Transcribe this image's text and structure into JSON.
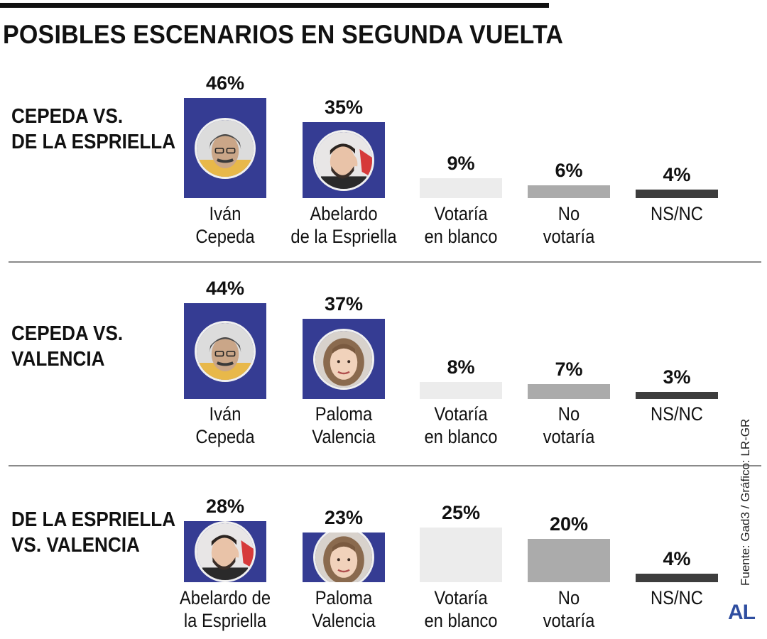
{
  "header": {
    "title": "POSIBLES ESCENARIOS EN SEGUNDA VUELTA"
  },
  "source_note": "Fuente: Gad3 / Gráfico: LR-GR",
  "logo_text": "AL",
  "colors": {
    "candidate": "#353c93",
    "blank": "#ececec",
    "no_vote": "#ababab",
    "ns_nc": "#3d3d3d"
  },
  "chart_data": [
    {
      "type": "bar",
      "title": "CEPEDA VS.\nDE LA ESPRIELLA",
      "categories": [
        "Iván\nCepeda",
        "Abelardo\nde la Espriella",
        "Votaría\nen blanco",
        "No\nvotaría",
        "NS/NC"
      ],
      "values": [
        46,
        35,
        9,
        6,
        4
      ],
      "value_labels": [
        "46%",
        "35%",
        "9%",
        "6%",
        "4%"
      ],
      "kinds": [
        "candidate",
        "candidate",
        "blank",
        "novote",
        "nsnc"
      ],
      "photos": [
        "man-glasses",
        "man-bearded",
        "",
        "",
        ""
      ]
    },
    {
      "type": "bar",
      "title": "CEPEDA VS.\nVALENCIA",
      "categories": [
        "Iván\nCepeda",
        "Paloma\nValencia",
        "Votaría\nen blanco",
        "No\nvotaría",
        "NS/NC"
      ],
      "values": [
        44,
        37,
        8,
        7,
        3
      ],
      "value_labels": [
        "44%",
        "37%",
        "8%",
        "7%",
        "3%"
      ],
      "kinds": [
        "candidate",
        "candidate",
        "blank",
        "novote",
        "nsnc"
      ],
      "photos": [
        "man-glasses",
        "woman",
        "",
        "",
        ""
      ]
    },
    {
      "type": "bar",
      "title": "DE LA ESPRIELLA\nVS. VALENCIA",
      "categories": [
        "Abelardo de\nla Espriella",
        "Paloma\nValencia",
        "Votaría\nen blanco",
        "No\nvotaría",
        "NS/NC"
      ],
      "values": [
        28,
        23,
        25,
        20,
        4
      ],
      "value_labels": [
        "28%",
        "23%",
        "25%",
        "20%",
        "4%"
      ],
      "kinds": [
        "candidate",
        "candidate",
        "blank",
        "novote",
        "nsnc"
      ],
      "photos": [
        "man-bearded",
        "woman",
        "",
        "",
        ""
      ]
    }
  ]
}
